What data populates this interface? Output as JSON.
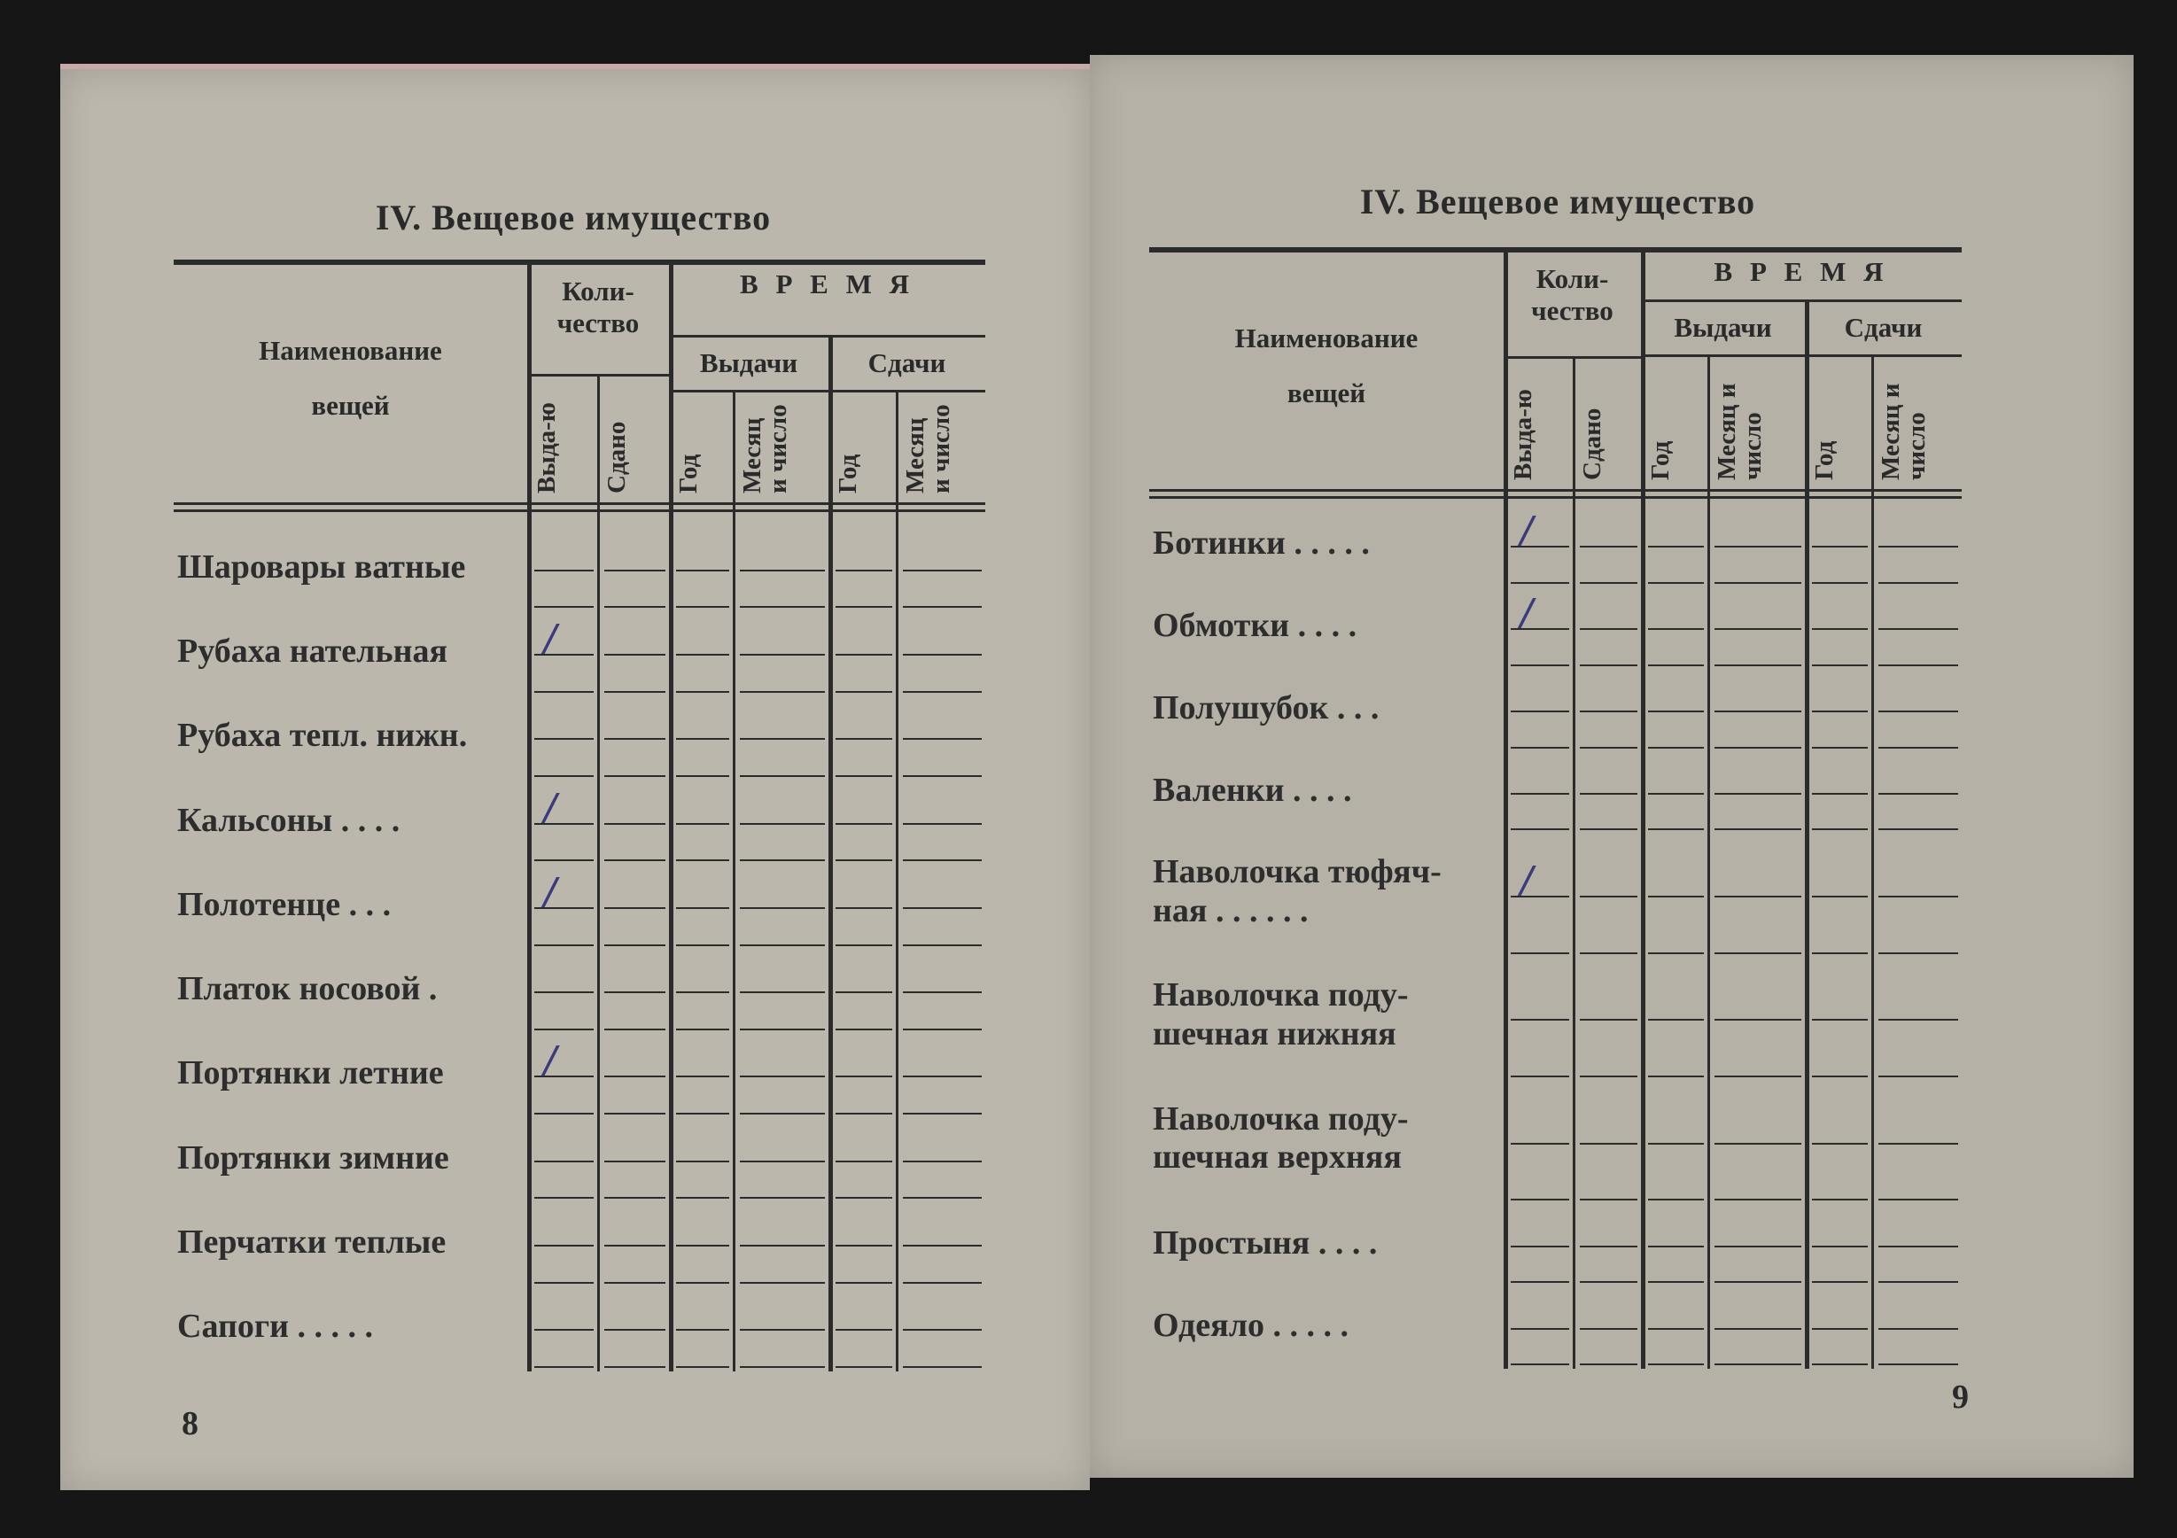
{
  "colors": {
    "paper": "#bcb7ad",
    "ink": "#2b2b2b",
    "pen": "#3d3a7a",
    "background": "#161616"
  },
  "pages": [
    {
      "title": "IV. Вещевое имущество",
      "page_number": "8",
      "header": {
        "name": [
          "Наименование",
          "вещей"
        ],
        "qty": [
          "Коли-",
          "чество"
        ],
        "issued": "Выда-ю",
        "returned": "Сдано",
        "time": "В Р Е М Я",
        "issue": "Выдачи",
        "return": "Сдачи",
        "year": "Год",
        "month": "Месяц и число"
      },
      "items": [
        {
          "label": [
            "Шаровары ватные"
          ],
          "issued": ""
        },
        {
          "label": [
            "Рубаха нательная"
          ],
          "issued": "/"
        },
        {
          "label": [
            "Рубаха тепл. нижн."
          ],
          "issued": ""
        },
        {
          "label": [
            "Кальсоны . . . ."
          ],
          "issued": "/"
        },
        {
          "label": [
            "Полотенце   . . ."
          ],
          "issued": "/"
        },
        {
          "label": [
            "Платок  носовой  ."
          ],
          "issued": ""
        },
        {
          "label": [
            "Портянки  летние"
          ],
          "issued": "/"
        },
        {
          "label": [
            "Портянки  зимние"
          ],
          "issued": ""
        },
        {
          "label": [
            "Перчатки  теплые"
          ],
          "issued": ""
        },
        {
          "label": [
            "Сапоги  . . . . ."
          ],
          "issued": ""
        }
      ]
    },
    {
      "title": "IV. Вещевое имущество",
      "page_number": "9",
      "header": {
        "name": [
          "Наименование",
          "вещей"
        ],
        "qty": [
          "Коли-",
          "чество"
        ],
        "issued": "Выда-ю",
        "returned": "Сдано",
        "time": "В Р Е М Я",
        "issue": "Выдачи",
        "return": "Сдачи",
        "year": "Год",
        "month": "Месяц и число"
      },
      "items": [
        {
          "label": [
            "Ботинки . . . . ."
          ],
          "issued": "/"
        },
        {
          "label": [
            "Обмотки   . . . ."
          ],
          "issued": "/"
        },
        {
          "label": [
            "Полушубок  . . ."
          ],
          "issued": ""
        },
        {
          "label": [
            "Валенки   . . . ."
          ],
          "issued": ""
        },
        {
          "label": [
            "Наволочка тюфяч-",
            "  ная . . . . . ."
          ],
          "issued": "/"
        },
        {
          "label": [
            "Наволочка  поду-",
            "  шечная нижняя"
          ],
          "issued": ""
        },
        {
          "label": [
            "Наволочка  поду-",
            "  шечная верхняя"
          ],
          "issued": ""
        },
        {
          "label": [
            "Простыня  . . . ."
          ],
          "issued": ""
        },
        {
          "label": [
            "Одеяло  . . . . ."
          ],
          "issued": ""
        }
      ]
    }
  ]
}
